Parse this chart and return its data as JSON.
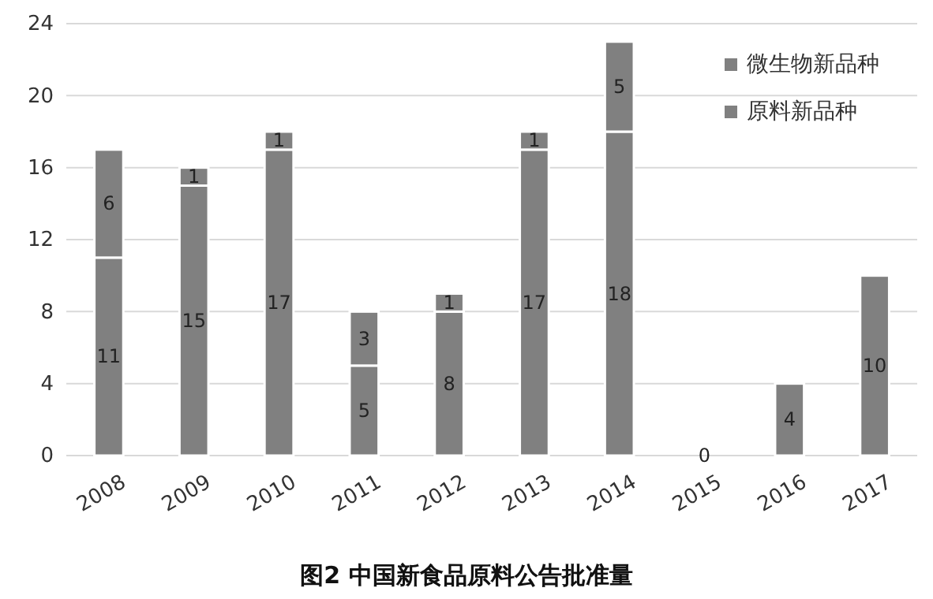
{
  "chart_data": {
    "type": "bar",
    "title": "图2 中国新食品原料公告批准量",
    "categories": [
      "2008",
      "2009",
      "2010",
      "2011",
      "2012",
      "2013",
      "2014",
      "2015",
      "2016",
      "2017"
    ],
    "stacked": true,
    "data_labels": true,
    "grid": "y",
    "legend": "top right",
    "ylim": [
      0,
      24
    ],
    "yticks": [
      0,
      4,
      8,
      12,
      16,
      20,
      24
    ],
    "series": [
      {
        "name": "原料新品种",
        "color": "#808080",
        "values": [
          11,
          15,
          17,
          5,
          8,
          17,
          18,
          0,
          4,
          10
        ]
      },
      {
        "name": "微生物新品种",
        "color": "#808080",
        "values": [
          6,
          1,
          1,
          3,
          1,
          1,
          5,
          null,
          null,
          null
        ]
      }
    ]
  }
}
